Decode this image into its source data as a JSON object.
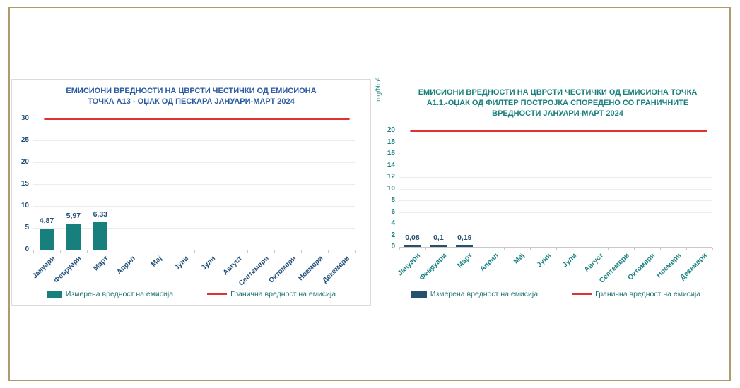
{
  "frame": {
    "border_color": "#AE9B6B",
    "background": "#FFFFFF"
  },
  "chart_data": [
    {
      "type": "bar",
      "title": "ЕМИСИОНИ ВРЕДНОСТИ НА ЦВРСТИ ЧЕСТИЧКИ ОД ЕМИСИОНА ТОЧКА А13 - ОЏАК ОД ПЕСКАРА ЈАНУАРИ-МАРТ 2024",
      "title_lines": [
        "ЕМИСИОНИ ВРЕДНОСТИ НА ЦВРСТИ ЧЕСТИЧКИ ОД ЕМИСИОНА",
        "ТОЧКА А13 - ОЏАК ОД ПЕСКАРА ЈАНУАРИ-МАРТ 2024"
      ],
      "categories": [
        "Јануари",
        "Февруари",
        "Март",
        "Април",
        "Мај",
        "Јуни",
        "Јули",
        "Август",
        "Септември",
        "Октомври",
        "Ноември",
        "Декември"
      ],
      "values": [
        4.87,
        5.97,
        6.33,
        null,
        null,
        null,
        null,
        null,
        null,
        null,
        null,
        null
      ],
      "value_labels": [
        "4,87",
        "5,97",
        "6,33",
        "",
        "",
        "",
        "",
        "",
        "",
        "",
        "",
        ""
      ],
      "limit_value": 30,
      "ylim": [
        0,
        30
      ],
      "ytick_step": 5,
      "ylabel": "",
      "grid": true,
      "legend_position": "bottom",
      "legend": [
        "Измерена вредност на емисија",
        "Гранична вредност на емисија"
      ],
      "colors": {
        "bar": "#17807D",
        "limit": "#E03232",
        "title": "#2B5BA1",
        "axis": "#1F4E79",
        "xlabel": "#1F4E79",
        "datalabel": "#1F4E79",
        "legendtext": "#1D7373"
      }
    },
    {
      "type": "bar",
      "title": "ЕМИСИОНИ ВРЕДНОСТИ НА ЦВРСТИ ЧЕСТИЧКИ ОД ЕМИСИОНА ТОЧКА А1.1.-ОЏАК ОД ФИЛТЕР ПОСТРОЈКА СПОРЕДЕНО СО ГРАНИЧНИТЕ ВРЕДНОСТИ ЈАНУАРИ-МАРТ 2024",
      "title_lines": [
        "ЕМИСИОНИ ВРЕДНОСТИ НА ЦВРСТИ ЧЕСТИЧКИ ОД ЕМИСИОНА ТОЧКА",
        "А1.1.-ОЏАК ОД ФИЛТЕР ПОСТРОЈКА СПОРЕДЕНО СО ГРАНИЧНИТЕ",
        "ВРЕДНОСТИ ЈАНУАРИ-МАРТ 2024"
      ],
      "categories": [
        "Јануари",
        "Февруари",
        "Март",
        "Април",
        "Мај",
        "Јуни",
        "Јули",
        "Август",
        "Септември",
        "Октомври",
        "Ноември",
        "Декември"
      ],
      "values": [
        0.08,
        0.1,
        0.19,
        null,
        null,
        null,
        null,
        null,
        null,
        null,
        null,
        null
      ],
      "value_labels": [
        "0,08",
        "0,1",
        "0,19",
        "",
        "",
        "",
        "",
        "",
        "",
        "",
        "",
        ""
      ],
      "limit_value": 20,
      "ylim": [
        0,
        20
      ],
      "ytick_step": 2,
      "ylabel": "mg/Nm³",
      "grid": true,
      "legend_position": "bottom",
      "legend": [
        "Измерена вредност на емисија",
        "Гранична вредност на емисија"
      ],
      "colors": {
        "bar": "#25506E",
        "limit": "#E03232",
        "title": "#17807D",
        "axis": "#17807D",
        "xlabel": "#1D8282",
        "datalabel": "#25506E",
        "legendtext": "#1D7373"
      }
    }
  ]
}
